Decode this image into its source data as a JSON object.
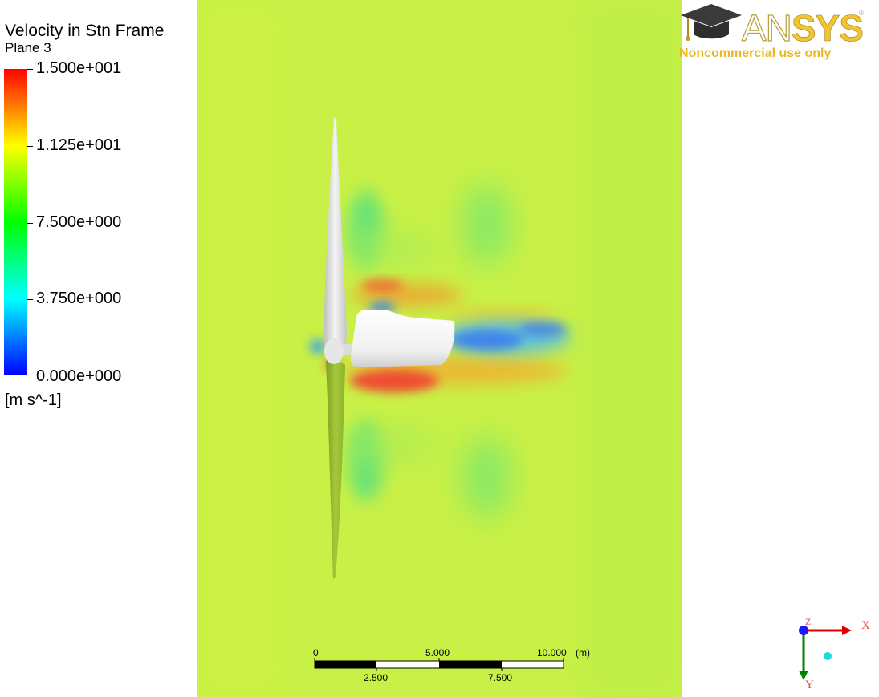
{
  "legend": {
    "title": "Velocity in Stn Frame",
    "subtitle": "Plane 3",
    "ticks": [
      "1.500e+001",
      "1.125e+001",
      "7.500e+000",
      "3.750e+000",
      "0.000e+000"
    ],
    "unit": "[m s^-1]",
    "colormap": [
      "#ff0000",
      "#ff8000",
      "#ffff00",
      "#80ff00",
      "#00ff00",
      "#00ff80",
      "#00ffff",
      "#0080ff",
      "#0000ff"
    ]
  },
  "logo": {
    "brand_an": "AN",
    "brand_sys": "SYS",
    "registered": "®",
    "notice": "Noncommercial use only",
    "icon": "graduation-cap-icon"
  },
  "scale": {
    "labels_top": [
      "0",
      "5.000",
      "10.000"
    ],
    "unit": "(m)",
    "labels_bottom": [
      "2.500",
      "7.500"
    ]
  },
  "axes": {
    "x": "X",
    "y": "Y",
    "z": "Z"
  },
  "colors": {
    "background_field": "#c8f046",
    "body": "#e8e8e8"
  }
}
